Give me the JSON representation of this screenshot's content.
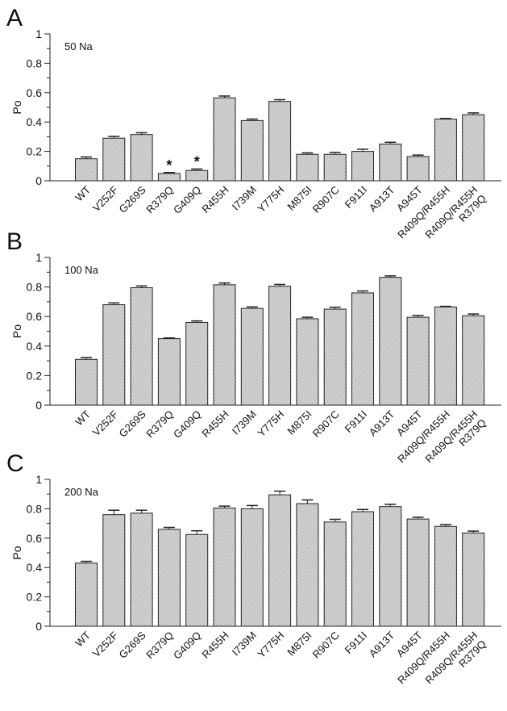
{
  "chart_data": [
    {
      "type": "bar",
      "panel_label": "A",
      "condition": "50 Na",
      "ylabel": "Po",
      "ylim": [
        0,
        1
      ],
      "yticks": [
        "0",
        "0.2",
        "0.4",
        "0.6",
        "0.8",
        "1"
      ],
      "categories": [
        "WT",
        "V252F",
        "G269S",
        "R379Q",
        "G409Q",
        "R455H",
        "I739M",
        "Y775H",
        "M875I",
        "R907C",
        "F911I",
        "A913T",
        "A945T",
        "R409Q/R455H",
        "R409Q/R455H\nR379Q"
      ],
      "values": [
        0.15,
        0.29,
        0.315,
        0.05,
        0.07,
        0.565,
        0.41,
        0.54,
        0.18,
        0.18,
        0.2,
        0.25,
        0.165,
        0.42,
        0.45
      ],
      "errors": [
        0.012,
        0.012,
        0.012,
        0.006,
        0.01,
        0.012,
        0.01,
        0.012,
        0.01,
        0.013,
        0.015,
        0.012,
        0.01,
        0.004,
        0.012
      ],
      "significance": [
        "",
        "",
        "",
        "*",
        "*",
        "",
        "",
        "",
        "",
        "",
        "",
        "",
        "",
        "",
        ""
      ]
    },
    {
      "type": "bar",
      "panel_label": "B",
      "condition": "100 Na",
      "ylabel": "Po",
      "ylim": [
        0,
        1
      ],
      "yticks": [
        "0",
        "0.2",
        "0.4",
        "0.6",
        "0.8",
        "1"
      ],
      "categories": [
        "WT",
        "V252F",
        "G269S",
        "R379Q",
        "G409Q",
        "R455H",
        "I739M",
        "Y775H",
        "M875I",
        "R907C",
        "F911I",
        "A913T",
        "A945T",
        "R409Q/R455H",
        "R409Q/R455H\nR379Q"
      ],
      "values": [
        0.31,
        0.68,
        0.795,
        0.45,
        0.56,
        0.815,
        0.655,
        0.805,
        0.585,
        0.65,
        0.76,
        0.865,
        0.595,
        0.665,
        0.605
      ],
      "errors": [
        0.012,
        0.012,
        0.012,
        0.005,
        0.01,
        0.012,
        0.01,
        0.012,
        0.01,
        0.013,
        0.013,
        0.01,
        0.012,
        0.004,
        0.012
      ],
      "significance": [
        "",
        "",
        "",
        "",
        "",
        "",
        "",
        "",
        "",
        "",
        "",
        "",
        "",
        "",
        ""
      ]
    },
    {
      "type": "bar",
      "panel_label": "C",
      "condition": "200 Na",
      "ylabel": "Po",
      "ylim": [
        0,
        1
      ],
      "yticks": [
        "0",
        "0.2",
        "0.4",
        "0.6",
        "0.8",
        "1"
      ],
      "categories": [
        "WT",
        "V252F",
        "G269S",
        "R379Q",
        "G409Q",
        "R455H",
        "I739M",
        "Y775H",
        "M875I",
        "R907C",
        "F911I",
        "A913T",
        "A945T",
        "R409Q/R455H",
        "R409Q/R455H\nR379Q"
      ],
      "values": [
        0.43,
        0.76,
        0.77,
        0.66,
        0.625,
        0.805,
        0.8,
        0.895,
        0.835,
        0.71,
        0.78,
        0.815,
        0.73,
        0.68,
        0.635
      ],
      "errors": [
        0.012,
        0.03,
        0.02,
        0.013,
        0.025,
        0.013,
        0.022,
        0.025,
        0.025,
        0.018,
        0.015,
        0.015,
        0.012,
        0.012,
        0.013
      ],
      "significance": [
        "",
        "",
        "",
        "",
        "",
        "",
        "",
        "",
        "",
        "",
        "",
        "",
        "",
        "",
        ""
      ]
    }
  ]
}
